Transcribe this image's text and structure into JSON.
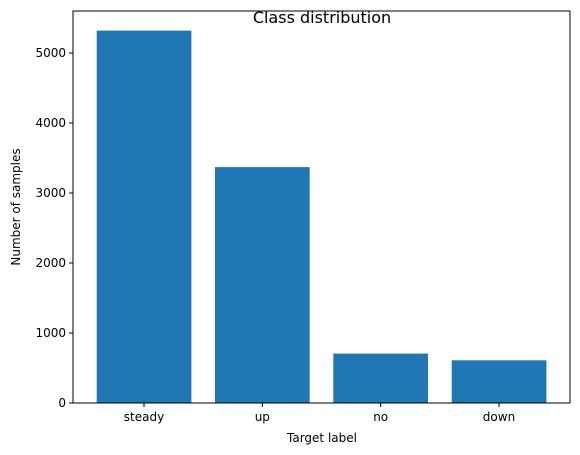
{
  "chart_data": {
    "type": "bar",
    "title": "Class distribution",
    "xlabel": "Target label",
    "ylabel": "Number of samples",
    "categories": [
      "steady",
      "up",
      "no",
      "down"
    ],
    "values": [
      5320,
      3370,
      705,
      610
    ],
    "ylim": [
      0,
      5600
    ],
    "yticks": [
      0,
      1000,
      2000,
      3000,
      4000,
      5000
    ],
    "bar_color": "#1f77b4",
    "grid": false,
    "legend": "none"
  }
}
